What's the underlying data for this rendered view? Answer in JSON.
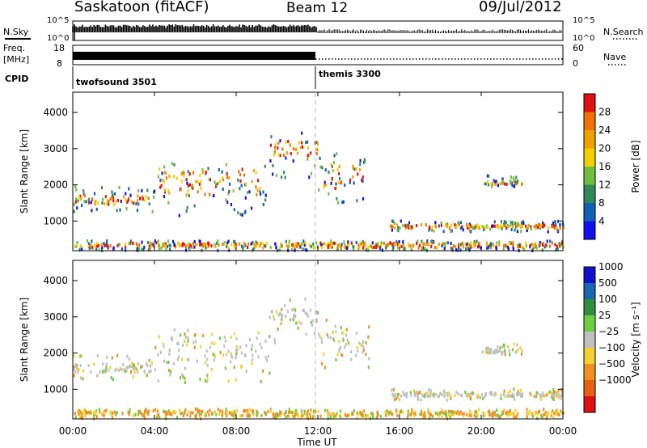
{
  "header": {
    "title": "Saskatoon (fitACF)",
    "beam": "Beam 12",
    "date": "09/Jul/2012"
  },
  "status_panel": {
    "nsky_label": "N.Sky",
    "nsearch_label": "N.Search",
    "noise_ticks_left": [
      "10^5",
      "10^0"
    ],
    "noise_ticks_right": [
      "10^5",
      "10^0"
    ],
    "freq_label_lines": [
      "Freq.",
      "[MHz]"
    ],
    "freq_ticks": [
      "18",
      "8"
    ],
    "nave_label": "Nave",
    "nave_ticks": [
      "60",
      "0"
    ],
    "cpid_label": "CPID",
    "cpid_segments": [
      {
        "name": "twofsound 3501",
        "start_hour": 0
      },
      {
        "name": "themis 3300",
        "start_hour": 12
      }
    ]
  },
  "time_axis": {
    "label": "Time UT",
    "ticks": [
      "00:00",
      "04:00",
      "08:00",
      "12:00",
      "16:00",
      "20:00",
      "00:00"
    ],
    "range_hours": [
      0,
      24
    ]
  },
  "range_axis": {
    "label": "Slant Range [km]",
    "ticks": [
      "1000",
      "2000",
      "3000",
      "4000"
    ],
    "range_km": [
      180,
      4560
    ]
  },
  "colorbars": {
    "power": {
      "label": "Power [dB]",
      "ticks": [
        "4",
        "8",
        "12",
        "16",
        "20",
        "24",
        "28"
      ],
      "colors": [
        "#1010f0",
        "#1060b8",
        "#2e8b57",
        "#6fbf3f",
        "#f0d000",
        "#f0a000",
        "#f07000",
        "#e01010"
      ]
    },
    "velocity": {
      "label": "Velocity [m s⁻¹]",
      "ticks": [
        "1000",
        "500",
        "100",
        "25",
        "−25",
        "−100",
        "−500",
        "−1000"
      ],
      "colors": [
        "#1010d0",
        "#1868b0",
        "#2f8f3f",
        "#6ccf3c",
        "#c0c0c0",
        "#f5d030",
        "#f09020",
        "#e86010",
        "#e01010"
      ]
    }
  },
  "chart_data": [
    {
      "type": "heatmap",
      "panel": "power",
      "x_unit": "hours UT",
      "y_unit": "km",
      "xlim": [
        0,
        24
      ],
      "ylim": [
        180,
        4560
      ],
      "scatter_bands": [
        {
          "from_hour": 0.0,
          "to_hour": 4.0,
          "range_km": [
            1250,
            1950
          ],
          "core_km": [
            1450,
            1700
          ]
        },
        {
          "from_hour": 4.0,
          "to_hour": 9.6,
          "range_km": [
            1150,
            2650
          ],
          "core_km": [
            1700,
            2450
          ]
        },
        {
          "from_hour": 9.6,
          "to_hour": 12.0,
          "range_km": [
            2200,
            3500
          ],
          "core_km": [
            2800,
            3200
          ]
        },
        {
          "from_hour": 12.0,
          "to_hour": 14.5,
          "range_km": [
            1500,
            3000
          ],
          "core_km": [
            1900,
            2600
          ]
        },
        {
          "from_hour": 15.5,
          "to_hour": 24.0,
          "range_km": [
            700,
            1000
          ],
          "core_km": [
            800,
            900
          ]
        },
        {
          "from_hour": 20.0,
          "to_hour": 22.0,
          "range_km": [
            1950,
            2250
          ],
          "core_km": [
            2000,
            2100
          ]
        },
        {
          "from_hour": 0.0,
          "to_hour": 24.0,
          "range_km": [
            180,
            450
          ],
          "core_km": [
            250,
            400
          ]
        }
      ]
    },
    {
      "type": "heatmap",
      "panel": "velocity",
      "x_unit": "hours UT",
      "y_unit": "km",
      "xlim": [
        0,
        24
      ],
      "ylim": [
        180,
        4560
      ],
      "scatter_bands": [
        {
          "from_hour": 0.0,
          "to_hour": 4.0,
          "range_km": [
            1250,
            1950
          ],
          "core_km": [
            1450,
            1700
          ]
        },
        {
          "from_hour": 4.0,
          "to_hour": 9.6,
          "range_km": [
            1150,
            2650
          ],
          "core_km": [
            1700,
            2450
          ]
        },
        {
          "from_hour": 9.6,
          "to_hour": 12.0,
          "range_km": [
            2200,
            3500
          ],
          "core_km": [
            2800,
            3200
          ]
        },
        {
          "from_hour": 12.0,
          "to_hour": 14.5,
          "range_km": [
            1500,
            3000
          ],
          "core_km": [
            1900,
            2600
          ]
        },
        {
          "from_hour": 15.5,
          "to_hour": 24.0,
          "range_km": [
            700,
            1000
          ],
          "core_km": [
            800,
            900
          ]
        },
        {
          "from_hour": 20.0,
          "to_hour": 22.0,
          "range_km": [
            1950,
            2250
          ],
          "core_km": [
            2000,
            2100
          ]
        },
        {
          "from_hour": 0.0,
          "to_hour": 24.0,
          "range_km": [
            180,
            450
          ],
          "core_km": [
            250,
            400
          ]
        }
      ]
    }
  ]
}
